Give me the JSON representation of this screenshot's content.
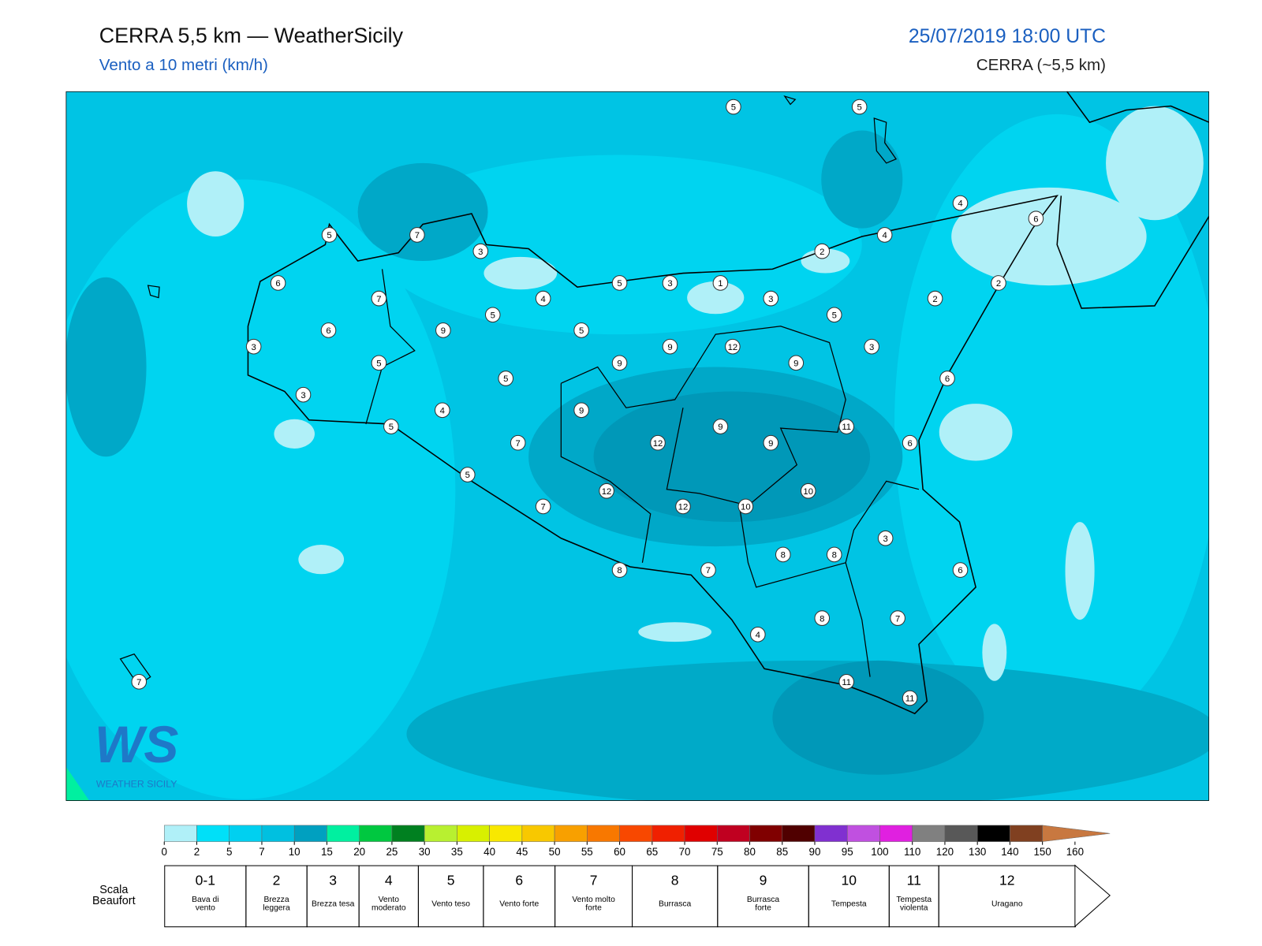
{
  "header": {
    "title": "CERRA 5,5 km — WeatherSicily",
    "subtitle": "Vento a 10 metri (km/h)",
    "datetime": "25/07/2019 18:00 UTC",
    "model": "CERRA (~5,5 km)"
  },
  "map": {
    "stations": [
      5,
      5,
      4,
      6,
      5,
      7,
      3,
      2,
      4,
      6,
      5,
      3,
      1,
      2,
      7,
      4,
      3,
      2,
      5,
      5,
      6,
      9,
      5,
      3,
      9,
      12,
      3,
      5,
      9,
      9,
      5,
      6,
      3,
      4,
      9,
      5,
      9,
      11,
      7,
      12,
      9,
      6,
      5,
      12,
      10,
      7,
      12,
      10,
      3,
      8,
      8,
      8,
      7,
      6,
      8,
      7,
      4,
      7,
      11,
      11
    ]
  },
  "logo": {
    "mark": "WS",
    "text": "WEATHER SICILY"
  },
  "colorbar": {
    "ticks": [
      0,
      2,
      5,
      7,
      10,
      15,
      20,
      25,
      30,
      35,
      40,
      45,
      50,
      55,
      60,
      65,
      70,
      75,
      80,
      85,
      90,
      95,
      100,
      110,
      120,
      130,
      140,
      150,
      160
    ],
    "colors": [
      "#b0f0f8",
      "#00e0f8",
      "#00d0f0",
      "#00c0e0",
      "#00a0c0",
      "#00f0a0",
      "#00c840",
      "#008020",
      "#b8f030",
      "#d8f000",
      "#f8e800",
      "#f8c800",
      "#f8a000",
      "#f87800",
      "#f84800",
      "#f02000",
      "#e00000",
      "#c00020",
      "#800000",
      "#500000",
      "#8030d0",
      "#c050e0",
      "#e020e0",
      "#808080",
      "#585858",
      "#000000",
      "#804020",
      "#c87840"
    ]
  },
  "beaufort": {
    "label": "Scala Beaufort",
    "classes": [
      {
        "number": "0-1",
        "name": "Bava di vento"
      },
      {
        "number": "2",
        "name": "Brezza leggera"
      },
      {
        "number": "3",
        "name": "Brezza tesa"
      },
      {
        "number": "4",
        "name": "Vento moderato"
      },
      {
        "number": "5",
        "name": "Vento teso"
      },
      {
        "number": "6",
        "name": "Vento forte"
      },
      {
        "number": "7",
        "name": "Vento molto forte"
      },
      {
        "number": "8",
        "name": "Burrasca"
      },
      {
        "number": "9",
        "name": "Burrasca forte"
      },
      {
        "number": "10",
        "name": "Tempesta"
      },
      {
        "number": "11",
        "name": "Tempesta violenta"
      },
      {
        "number": "12",
        "name": "Uragano"
      }
    ]
  }
}
